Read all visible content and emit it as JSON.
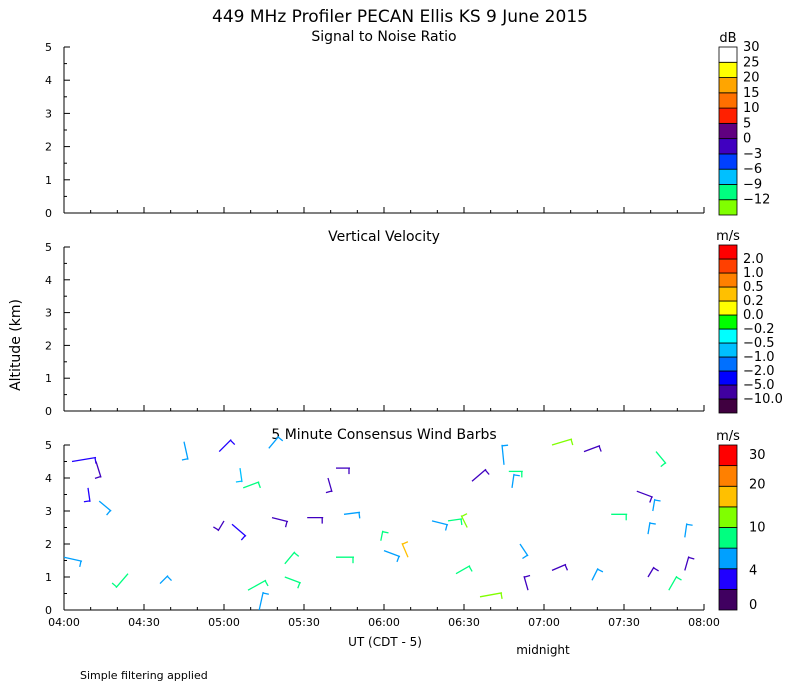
{
  "title": "449 MHz Profiler PECAN Ellis KS  9 June 2015",
  "y_axis_label": "Altitude (km)",
  "x_axis_label": "UT  (CDT - 5)",
  "midnight_label": "midnight",
  "footer_note": "Simple filtering applied",
  "chart_data": [
    {
      "type": "heatmap",
      "title": "Signal to Noise Ratio",
      "ylim": [
        0,
        5
      ],
      "y_ticks": [
        "0",
        "1",
        "2",
        "3",
        "4",
        "5"
      ],
      "data": [],
      "colorbar": {
        "unit": "dB",
        "colors": [
          "#80ff00",
          "#00ff80",
          "#00c0ff",
          "#0040ff",
          "#4000c0",
          "#600080",
          "#ff2000",
          "#ff7000",
          "#ffa500",
          "#ffff00",
          "#ffffff"
        ],
        "labels": [
          "−12",
          "−9",
          "−6",
          "−3",
          "0",
          "5",
          "10",
          "15",
          "20",
          "25",
          "30"
        ]
      }
    },
    {
      "type": "heatmap",
      "title": "Vertical Velocity",
      "ylim": [
        0,
        5
      ],
      "y_ticks": [
        "0",
        "1",
        "2",
        "3",
        "4",
        "5"
      ],
      "data": [],
      "colorbar": {
        "unit": "m/s",
        "colors": [
          "#400040",
          "#4000a0",
          "#0000ff",
          "#0070ff",
          "#00c0ff",
          "#00ffff",
          "#00ff00",
          "#ffff00",
          "#ffc000",
          "#ff8000",
          "#ff4000",
          "#ff0000"
        ],
        "labels": [
          "−10.0",
          "−5.0",
          "−2.0",
          "−1.0",
          "−0.5",
          "−0.2",
          "0.0",
          "0.2",
          "0.5",
          "1.0",
          "2.0"
        ]
      }
    },
    {
      "type": "scatter",
      "title": "5 Minute Consensus Wind Barbs",
      "ylim": [
        0,
        5
      ],
      "y_ticks": [
        "0",
        "1",
        "2",
        "3",
        "4",
        "5"
      ],
      "x_ticks": [
        "04:00",
        "04:30",
        "05:00",
        "05:30",
        "06:00",
        "06:30",
        "07:00",
        "07:30",
        "08:00"
      ],
      "x_range_hours": [
        4,
        8
      ],
      "colorbar": {
        "unit": "m/s",
        "colors": [
          "#400060",
          "#2000ff",
          "#00a0ff",
          "#00ff80",
          "#80ff00",
          "#ffc000",
          "#ff8000",
          "#ff0000"
        ],
        "labels": [
          "0",
          "4",
          "10",
          "20",
          "30"
        ]
      },
      "barbs": [
        {
          "t": 4.0,
          "h": 1.6,
          "dx": 18,
          "dy": 4,
          "c": "#00a0ff"
        },
        {
          "t": 4.05,
          "h": 4.5,
          "dx": 24,
          "dy": -4,
          "c": "#2000ff"
        },
        {
          "t": 4.15,
          "h": 3.7,
          "dx": 2,
          "dy": 14,
          "c": "#2000ff"
        },
        {
          "t": 4.2,
          "h": 4.5,
          "dx": 5,
          "dy": 16,
          "c": "#4000c0"
        },
        {
          "t": 4.22,
          "h": 3.3,
          "dx": 12,
          "dy": 10,
          "c": "#00a0ff"
        },
        {
          "t": 4.4,
          "h": 1.1,
          "dx": -12,
          "dy": 14,
          "c": "#00ff80"
        },
        {
          "t": 4.6,
          "h": 0.8,
          "dx": 8,
          "dy": -8,
          "c": "#00a0ff"
        },
        {
          "t": 4.75,
          "h": 5.1,
          "dx": 4,
          "dy": 18,
          "c": "#00a0ff"
        },
        {
          "t": 4.97,
          "h": 4.8,
          "dx": 12,
          "dy": -12,
          "c": "#2000ff"
        },
        {
          "t": 5.0,
          "h": 2.7,
          "dx": -6,
          "dy": 10,
          "c": "#4000c0"
        },
        {
          "t": 5.05,
          "h": 2.6,
          "dx": 14,
          "dy": 12,
          "c": "#2000ff"
        },
        {
          "t": 5.1,
          "h": 4.3,
          "dx": 2,
          "dy": 14,
          "c": "#00c0ff"
        },
        {
          "t": 5.12,
          "h": 3.7,
          "dx": 16,
          "dy": -6,
          "c": "#00ff80"
        },
        {
          "t": 5.15,
          "h": 0.6,
          "dx": 18,
          "dy": -10,
          "c": "#00ff80"
        },
        {
          "t": 5.22,
          "h": 0.0,
          "dx": 4,
          "dy": -18,
          "c": "#00a0ff"
        },
        {
          "t": 5.28,
          "h": 4.9,
          "dx": 10,
          "dy": -12,
          "c": "#00a0ff"
        },
        {
          "t": 5.3,
          "h": 2.8,
          "dx": 16,
          "dy": 4,
          "c": "#4000c0"
        },
        {
          "t": 5.38,
          "h": 1.4,
          "dx": 10,
          "dy": -12,
          "c": "#00ff80"
        },
        {
          "t": 5.38,
          "h": 1.0,
          "dx": 16,
          "dy": 6,
          "c": "#00ff80"
        },
        {
          "t": 5.52,
          "h": 2.8,
          "dx": 16,
          "dy": 0,
          "c": "#4000c0"
        },
        {
          "t": 5.65,
          "h": 4.0,
          "dx": 4,
          "dy": 14,
          "c": "#4000c0"
        },
        {
          "t": 5.7,
          "h": 4.3,
          "dx": 14,
          "dy": 0,
          "c": "#4000c0"
        },
        {
          "t": 5.7,
          "h": 1.6,
          "dx": 18,
          "dy": 0,
          "c": "#00ff80"
        },
        {
          "t": 5.75,
          "h": 2.9,
          "dx": 16,
          "dy": -2,
          "c": "#00a0ff"
        },
        {
          "t": 5.98,
          "h": 2.1,
          "dx": 2,
          "dy": -10,
          "c": "#00ff80"
        },
        {
          "t": 6.0,
          "h": 1.8,
          "dx": 16,
          "dy": 6,
          "c": "#00a0ff"
        },
        {
          "t": 6.15,
          "h": 1.6,
          "dx": -6,
          "dy": -14,
          "c": "#ffc000"
        },
        {
          "t": 6.3,
          "h": 2.7,
          "dx": 16,
          "dy": 4,
          "c": "#00a0ff"
        },
        {
          "t": 6.4,
          "h": 2.7,
          "dx": 14,
          "dy": -2,
          "c": "#00ff80"
        },
        {
          "t": 6.45,
          "h": 1.1,
          "dx": 14,
          "dy": -8,
          "c": "#00ff80"
        },
        {
          "t": 6.52,
          "h": 2.5,
          "dx": -6,
          "dy": -12,
          "c": "#80ff00"
        },
        {
          "t": 6.55,
          "h": 3.9,
          "dx": 14,
          "dy": -12,
          "c": "#4000c0"
        },
        {
          "t": 6.6,
          "h": 0.4,
          "dx": 22,
          "dy": -4,
          "c": "#80ff00"
        },
        {
          "t": 6.75,
          "h": 4.4,
          "dx": -2,
          "dy": -20,
          "c": "#00a0ff"
        },
        {
          "t": 6.78,
          "h": 4.2,
          "dx": 14,
          "dy": 0,
          "c": "#00ff80"
        },
        {
          "t": 6.8,
          "h": 3.7,
          "dx": 2,
          "dy": -14,
          "c": "#00a0ff"
        },
        {
          "t": 6.85,
          "h": 2.0,
          "dx": 8,
          "dy": 12,
          "c": "#00a0ff"
        },
        {
          "t": 6.9,
          "h": 0.6,
          "dx": -4,
          "dy": -14,
          "c": "#4000c0"
        },
        {
          "t": 7.05,
          "h": 1.2,
          "dx": 14,
          "dy": -6,
          "c": "#4000c0"
        },
        {
          "t": 7.05,
          "h": 5.0,
          "dx": 20,
          "dy": -6,
          "c": "#80ff00"
        },
        {
          "t": 7.25,
          "h": 4.8,
          "dx": 16,
          "dy": -6,
          "c": "#4000c0"
        },
        {
          "t": 7.3,
          "h": 0.9,
          "dx": 6,
          "dy": -12,
          "c": "#00a0ff"
        },
        {
          "t": 7.42,
          "h": 2.9,
          "dx": 16,
          "dy": 0,
          "c": "#00ff80"
        },
        {
          "t": 7.58,
          "h": 3.6,
          "dx": 16,
          "dy": 6,
          "c": "#4000c0"
        },
        {
          "t": 7.65,
          "h": 1.0,
          "dx": 6,
          "dy": -10,
          "c": "#4000c0"
        },
        {
          "t": 7.65,
          "h": 2.3,
          "dx": 2,
          "dy": -12,
          "c": "#00a0ff"
        },
        {
          "t": 7.68,
          "h": 3.0,
          "dx": 2,
          "dy": -12,
          "c": "#00a0ff"
        },
        {
          "t": 7.7,
          "h": 4.8,
          "dx": 10,
          "dy": 12,
          "c": "#00ff80"
        },
        {
          "t": 7.78,
          "h": 0.6,
          "dx": 8,
          "dy": -14,
          "c": "#00ff80"
        },
        {
          "t": 7.88,
          "h": 2.2,
          "dx": 2,
          "dy": -14,
          "c": "#00a0ff"
        },
        {
          "t": 7.88,
          "h": 1.2,
          "dx": 4,
          "dy": -14,
          "c": "#4000c0"
        }
      ]
    }
  ]
}
